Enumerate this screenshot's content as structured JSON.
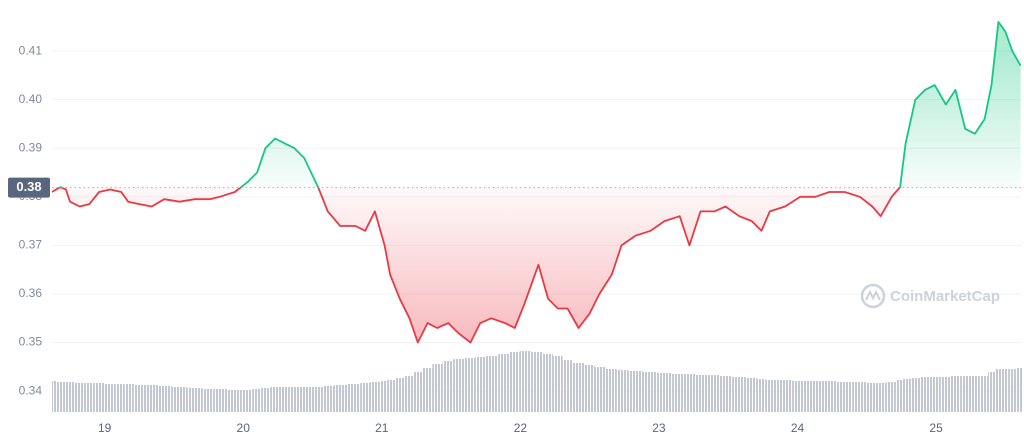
{
  "chart_data": {
    "type": "line",
    "x": [
      18.62,
      18.68,
      18.72,
      18.75,
      18.82,
      18.89,
      18.96,
      19.04,
      19.12,
      19.17,
      19.25,
      19.34,
      19.43,
      19.54,
      19.65,
      19.76,
      19.83,
      19.94,
      20.03,
      20.1,
      20.16,
      20.23,
      20.3,
      20.37,
      20.44,
      20.54,
      20.61,
      20.7,
      20.81,
      20.88,
      20.95,
      21.02,
      21.06,
      21.13,
      21.2,
      21.26,
      21.33,
      21.4,
      21.48,
      21.55,
      21.64,
      21.71,
      21.79,
      21.89,
      21.96,
      22.03,
      22.13,
      22.2,
      22.27,
      22.34,
      22.42,
      22.5,
      22.57,
      22.66,
      22.73,
      22.83,
      22.94,
      23.04,
      23.15,
      23.22,
      23.3,
      23.4,
      23.48,
      23.58,
      23.67,
      23.74,
      23.8,
      23.91,
      24.02,
      24.13,
      24.23,
      24.34,
      24.45,
      24.54,
      24.6,
      24.68,
      24.74,
      24.78,
      24.85,
      24.92,
      24.99,
      25.07,
      25.14,
      25.21,
      25.28,
      25.35,
      25.4,
      25.45,
      25.5,
      25.55,
      25.61
    ],
    "values": [
      0.381,
      0.382,
      0.3815,
      0.379,
      0.378,
      0.3785,
      0.381,
      0.3815,
      0.381,
      0.379,
      0.3785,
      0.378,
      0.3795,
      0.379,
      0.3795,
      0.3795,
      0.38,
      0.381,
      0.383,
      0.385,
      0.39,
      0.392,
      0.391,
      0.39,
      0.388,
      0.382,
      0.377,
      0.374,
      0.374,
      0.373,
      0.377,
      0.37,
      0.364,
      0.359,
      0.355,
      0.35,
      0.354,
      0.353,
      0.354,
      0.352,
      0.35,
      0.354,
      0.355,
      0.354,
      0.353,
      0.358,
      0.366,
      0.359,
      0.357,
      0.357,
      0.353,
      0.356,
      0.36,
      0.364,
      0.37,
      0.372,
      0.373,
      0.375,
      0.376,
      0.37,
      0.377,
      0.377,
      0.378,
      0.376,
      0.375,
      0.373,
      0.377,
      0.378,
      0.38,
      0.38,
      0.381,
      0.381,
      0.38,
      0.378,
      0.376,
      0.38,
      0.382,
      0.391,
      0.4,
      0.402,
      0.403,
      0.399,
      0.402,
      0.394,
      0.393,
      0.396,
      0.403,
      0.416,
      0.414,
      0.41,
      0.407
    ],
    "volume": [
      31,
      30,
      30,
      30,
      29,
      29,
      29,
      28,
      28,
      28,
      27,
      27,
      26,
      25,
      24,
      23,
      23,
      22,
      22,
      23,
      24,
      25,
      25,
      25,
      25,
      25,
      26,
      27,
      28,
      29,
      30,
      31,
      32,
      34,
      36,
      40,
      44,
      48,
      51,
      53,
      54,
      55,
      56,
      58,
      60,
      61,
      60,
      58,
      56,
      52,
      49,
      47,
      45,
      43,
      42,
      41,
      40,
      39,
      38,
      38,
      37,
      37,
      36,
      35,
      34,
      33,
      32,
      32,
      31,
      31,
      31,
      30,
      30,
      29,
      29,
      30,
      32,
      33,
      34,
      35,
      35,
      35,
      36,
      36,
      36,
      36,
      40,
      43,
      43,
      43,
      44
    ],
    "color_up": "#16c784",
    "color_down": "#ea3943",
    "volume_color": "#c3c7d1",
    "reference": {
      "value": 0.3819,
      "label": "0.38"
    },
    "xlim": [
      18.62,
      25.62
    ],
    "xticks": [
      19,
      20,
      21,
      22,
      23,
      24,
      25
    ],
    "ylim": [
      0.3357,
      0.4164
    ],
    "yticks": [
      0.34,
      0.35,
      0.36,
      0.37,
      0.38,
      0.39,
      {
        "value": 0.4,
        "label": "0.40"
      },
      0.41
    ],
    "y2lim": [
      0,
      100
    ],
    "grid": true,
    "watermark": "CoinMarketCap"
  }
}
